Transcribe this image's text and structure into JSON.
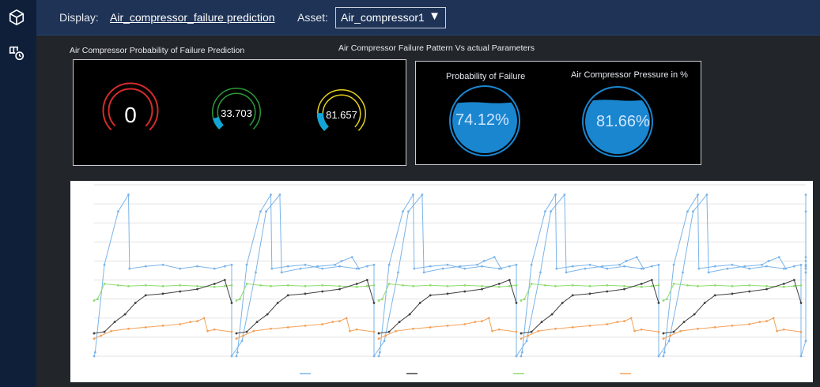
{
  "colors": {
    "sidebar": "#0f1f3a",
    "topbar": "#1e3356",
    "gauge_flow": "#d62b2b",
    "gauge_temp": "#2e9a3a",
    "gauge_pressure": "#e6d21c",
    "gauge_fill": "#12a6d8",
    "tank": "#1a86d0",
    "series_flow": "#7ab4ea",
    "series_failure": "#404040",
    "series_pressure": "#8fdc6f",
    "series_temp": "#f4a25a"
  },
  "sidebar": {
    "items": [
      {
        "icon": "cube-icon"
      },
      {
        "icon": "scale-timer-icon"
      }
    ]
  },
  "header": {
    "display_label": "Display:",
    "display_value": "Air_compressor_failure prediction",
    "asset_label": "Asset:",
    "asset_value": "Air_compressor1",
    "asset_caret": "▼"
  },
  "sections": {
    "gauges_title": "Air Compressor Probability of Failure Prediction",
    "pattern_title": "Air Compressor Failure Pattern Vs actual Parameters"
  },
  "gauges": [
    {
      "value": "0"
    },
    {
      "value": "33.703"
    },
    {
      "value": "81.657"
    }
  ],
  "tanks": [
    {
      "title": "Probability of Failure",
      "value": "74.12%",
      "level": 0.7412
    },
    {
      "title": "Air Compressor Pressure in %",
      "value": "81.66%",
      "level": 0.8166
    }
  ],
  "chart_data": {
    "type": "line",
    "title": "",
    "xlabel": "",
    "ylabel": "",
    "ylim": [
      0,
      225
    ],
    "yticks": [
      0,
      25,
      50,
      75,
      100,
      125,
      150,
      175,
      200,
      225
    ],
    "cycles": 5,
    "series": [
      {
        "key": "flow",
        "values": [
          [
            0,
            0
          ],
          [
            0.3,
            5
          ],
          [
            3,
            120
          ],
          [
            7,
            190
          ],
          [
            10,
            212
          ],
          [
            10.3,
            115
          ],
          [
            15,
            118
          ],
          [
            20,
            120
          ],
          [
            25,
            115
          ],
          [
            30,
            118
          ],
          [
            35,
            115
          ],
          [
            38,
            118
          ],
          [
            40,
            120
          ],
          [
            40,
            0
          ],
          [
            43,
            20
          ],
          [
            47,
            110
          ],
          [
            50,
            190
          ],
          [
            54,
            212
          ],
          [
            54.5,
            110
          ],
          [
            60,
            115
          ],
          [
            65,
            118
          ],
          [
            70,
            120
          ],
          [
            72,
            125
          ],
          [
            75,
            130
          ],
          [
            77,
            115
          ]
        ]
      },
      {
        "key": "pressure",
        "values": [
          [
            0,
            73
          ],
          [
            1,
            75
          ],
          [
            3,
            95
          ],
          [
            7,
            93
          ],
          [
            10,
            92
          ],
          [
            15,
            93
          ],
          [
            20,
            92
          ],
          [
            25,
            93
          ],
          [
            30,
            92
          ],
          [
            35,
            91
          ],
          [
            38,
            92
          ],
          [
            40,
            93
          ]
        ]
      },
      {
        "key": "temp",
        "values": [
          [
            0,
            23
          ],
          [
            2,
            27
          ],
          [
            5,
            33
          ],
          [
            10,
            36
          ],
          [
            15,
            38
          ],
          [
            20,
            40
          ],
          [
            25,
            42
          ],
          [
            28,
            45
          ],
          [
            30,
            46
          ],
          [
            32,
            50
          ],
          [
            33,
            33
          ],
          [
            35,
            35
          ],
          [
            40,
            32
          ]
        ]
      },
      {
        "key": "failure",
        "values": [
          [
            0,
            30
          ],
          [
            3,
            32
          ],
          [
            6,
            45
          ],
          [
            9,
            55
          ],
          [
            12,
            70
          ],
          [
            15,
            80
          ],
          [
            20,
            82
          ],
          [
            25,
            85
          ],
          [
            30,
            88
          ],
          [
            35,
            95
          ],
          [
            38,
            100
          ],
          [
            40,
            70
          ]
        ]
      }
    ]
  }
}
